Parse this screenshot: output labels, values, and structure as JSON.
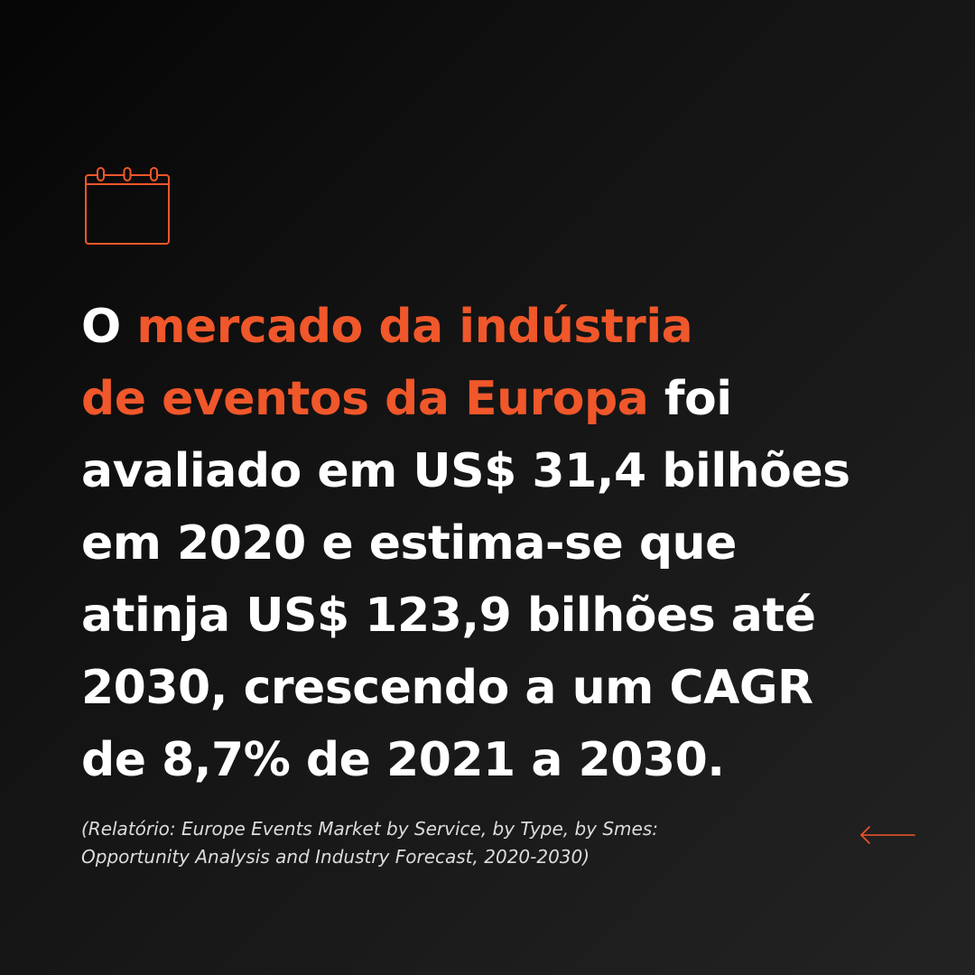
{
  "headline": {
    "line1": {
      "part1": "O ",
      "part2": "mercado da indústria"
    },
    "line2": {
      "part1": "de eventos da Europa",
      "part2": " foi"
    },
    "line3": "avaliado em US$ 31,4 bilhões",
    "line4": "em 2020 e estima-se que",
    "line5": "atinja US$ 123,9 bilhões até",
    "line6": "2030, crescendo a um CAGR",
    "line7": "de 8,7% de 2021 a 2030."
  },
  "source": {
    "line1": "(Relatório: Europe Events Market by Service, by Type, by Smes:",
    "line2": "Opportunity Analysis and Industry Forecast, 2020-2030)"
  },
  "icons": {
    "calendar": "calendar-icon",
    "navigation": "arrow-left-icon"
  },
  "colors": {
    "accent": "#f0572a",
    "text": "#ffffff",
    "background_dark": "#050505",
    "background_light": "#232323"
  }
}
